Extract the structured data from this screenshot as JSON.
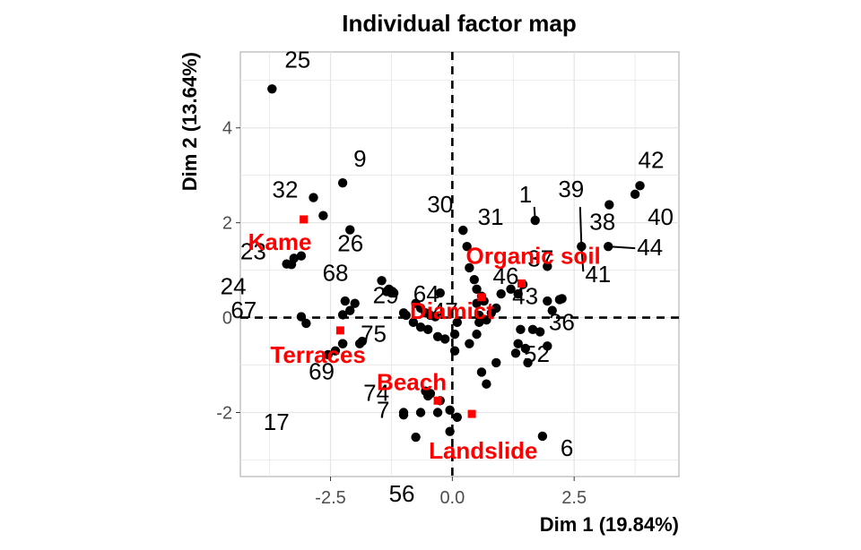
{
  "chart_data": {
    "type": "scatter",
    "title": "Individual factor map",
    "xlabel": "Dim 1 (19.84%)",
    "ylabel": "Dim 2 (13.64%)",
    "xlim": [
      -4.35,
      4.65
    ],
    "ylim": [
      -3.35,
      5.6
    ],
    "x_ticks": [
      -2.5,
      0.0,
      2.5
    ],
    "x_tick_labels": [
      "-2.5",
      "0.0",
      "2.5"
    ],
    "y_ticks": [
      -2,
      0,
      2,
      4
    ],
    "y_tick_labels": [
      "-2",
      "0",
      "2",
      "4"
    ],
    "grid": true,
    "reference_lines": {
      "x": 0,
      "y": 0,
      "style": "dashed"
    },
    "point_color": "#000000",
    "category_color": "#ff0000",
    "labeled_points": [
      {
        "label": "25",
        "x": -3.7,
        "y": 4.82
      },
      {
        "label": "9",
        "x": -2.25,
        "y": 2.84
      },
      {
        "label": "32",
        "x": -2.85,
        "y": 2.53
      },
      {
        "label": "23",
        "x": -3.1,
        "y": 1.3
      },
      {
        "label": "26",
        "x": -2.1,
        "y": 1.85
      },
      {
        "label": "24",
        "x": -3.4,
        "y": 1.13
      },
      {
        "label": "29",
        "x": -2.0,
        "y": 0.3
      },
      {
        "label": "68",
        "x": -1.45,
        "y": 0.78
      },
      {
        "label": "67",
        "x": -3.0,
        "y": -0.12
      },
      {
        "label": "75",
        "x": -2.25,
        "y": 0.06
      },
      {
        "label": "69",
        "x": -2.25,
        "y": -0.55
      },
      {
        "label": "17",
        "x": -2.55,
        "y": -0.78
      },
      {
        "label": "74",
        "x": -1.9,
        "y": -0.55
      },
      {
        "label": "7",
        "x": -1.0,
        "y": -2.0
      },
      {
        "label": "30",
        "x": 0.22,
        "y": 1.84
      },
      {
        "label": "31",
        "x": 0.3,
        "y": 1.5
      },
      {
        "label": "64",
        "x": -0.25,
        "y": 0.52
      },
      {
        "label": "46",
        "x": 0.5,
        "y": 0.6
      },
      {
        "label": "47",
        "x": 0.1,
        "y": -0.1
      },
      {
        "label": "56",
        "x": -0.75,
        "y": -2.52
      },
      {
        "label": "6",
        "x": 1.85,
        "y": -2.5
      },
      {
        "label": "1",
        "x": 1.7,
        "y": 2.05
      },
      {
        "label": "39",
        "x": 2.65,
        "y": 1.5
      },
      {
        "label": "42",
        "x": 3.85,
        "y": 2.78
      },
      {
        "label": "40",
        "x": 3.75,
        "y": 2.6
      },
      {
        "label": "38",
        "x": 3.22,
        "y": 2.38
      },
      {
        "label": "37",
        "x": 1.95,
        "y": 1.08
      },
      {
        "label": "44",
        "x": 3.2,
        "y": 1.5
      },
      {
        "label": "41",
        "x": 2.65,
        "y": 1.5
      },
      {
        "label": "43",
        "x": 1.45,
        "y": 0.7
      },
      {
        "label": "36",
        "x": 2.2,
        "y": 0.38
      },
      {
        "label": "52",
        "x": 1.65,
        "y": -0.25
      }
    ],
    "unlabeled_points": [
      [
        -3.25,
        1.25
      ],
      [
        -3.3,
        1.12
      ],
      [
        -2.65,
        2.15
      ],
      [
        -1.3,
        0.6
      ],
      [
        -1.2,
        0.52
      ],
      [
        -1.35,
        0.55
      ],
      [
        -2.1,
        0.15
      ],
      [
        -2.2,
        0.35
      ],
      [
        -3.1,
        0.02
      ],
      [
        -1.0,
        0.1
      ],
      [
        -0.95,
        0.05
      ],
      [
        -0.75,
        0.3
      ],
      [
        -0.65,
        0.2
      ],
      [
        -0.55,
        0.1
      ],
      [
        -0.45,
        0.05
      ],
      [
        -0.35,
        0.02
      ],
      [
        -0.8,
        -0.1
      ],
      [
        -0.65,
        -0.2
      ],
      [
        -0.5,
        -0.25
      ],
      [
        -0.3,
        -0.4
      ],
      [
        -0.15,
        -0.45
      ],
      [
        0.05,
        -0.7
      ],
      [
        0.35,
        -0.55
      ],
      [
        0.5,
        -0.35
      ],
      [
        0.7,
        -0.05
      ],
      [
        0.55,
        0.05
      ],
      [
        0.8,
        0.1
      ],
      [
        0.9,
        0.2
      ],
      [
        0.35,
        1.05
      ],
      [
        0.45,
        0.8
      ],
      [
        0.6,
        0.45
      ],
      [
        0.65,
        0.35
      ],
      [
        1.0,
        0.5
      ],
      [
        1.2,
        0.6
      ],
      [
        1.35,
        0.5
      ],
      [
        1.95,
        0.35
      ],
      [
        2.25,
        0.4
      ],
      [
        2.05,
        0.15
      ],
      [
        1.4,
        -0.25
      ],
      [
        1.35,
        -0.55
      ],
      [
        1.5,
        -0.65
      ],
      [
        1.8,
        -0.3
      ],
      [
        1.95,
        -0.6
      ],
      [
        1.55,
        -0.95
      ],
      [
        1.3,
        -0.75
      ],
      [
        0.9,
        -0.95
      ],
      [
        0.6,
        -1.15
      ],
      [
        0.7,
        -1.4
      ],
      [
        0.05,
        -0.35
      ],
      [
        -2.4,
        -0.7
      ],
      [
        -2.25,
        -0.55
      ],
      [
        -1.85,
        -0.5
      ],
      [
        -0.55,
        -1.55
      ],
      [
        -0.45,
        -1.6
      ],
      [
        -0.65,
        -2.0
      ],
      [
        -1.0,
        -2.05
      ],
      [
        -0.3,
        -2.0
      ],
      [
        -0.05,
        -1.95
      ],
      [
        0.1,
        -2.1
      ],
      [
        -0.05,
        -2.4
      ],
      [
        -0.25,
        -1.75
      ],
      [
        -0.5,
        -1.65
      ],
      [
        0.55,
        -0.1
      ],
      [
        0.5,
        0.3
      ]
    ],
    "categories": [
      {
        "label": "Kame",
        "x": -3.05,
        "y": 2.07
      },
      {
        "label": "Organic soil",
        "x": 1.42,
        "y": 0.72
      },
      {
        "label": "Diamict",
        "x": 0.6,
        "y": 0.43
      },
      {
        "label": "Terraces",
        "x": -2.3,
        "y": -0.27
      },
      {
        "label": "Beach",
        "x": -0.3,
        "y": -1.75
      },
      {
        "label": "Landslide",
        "x": 0.4,
        "y": -2.03
      }
    ]
  }
}
